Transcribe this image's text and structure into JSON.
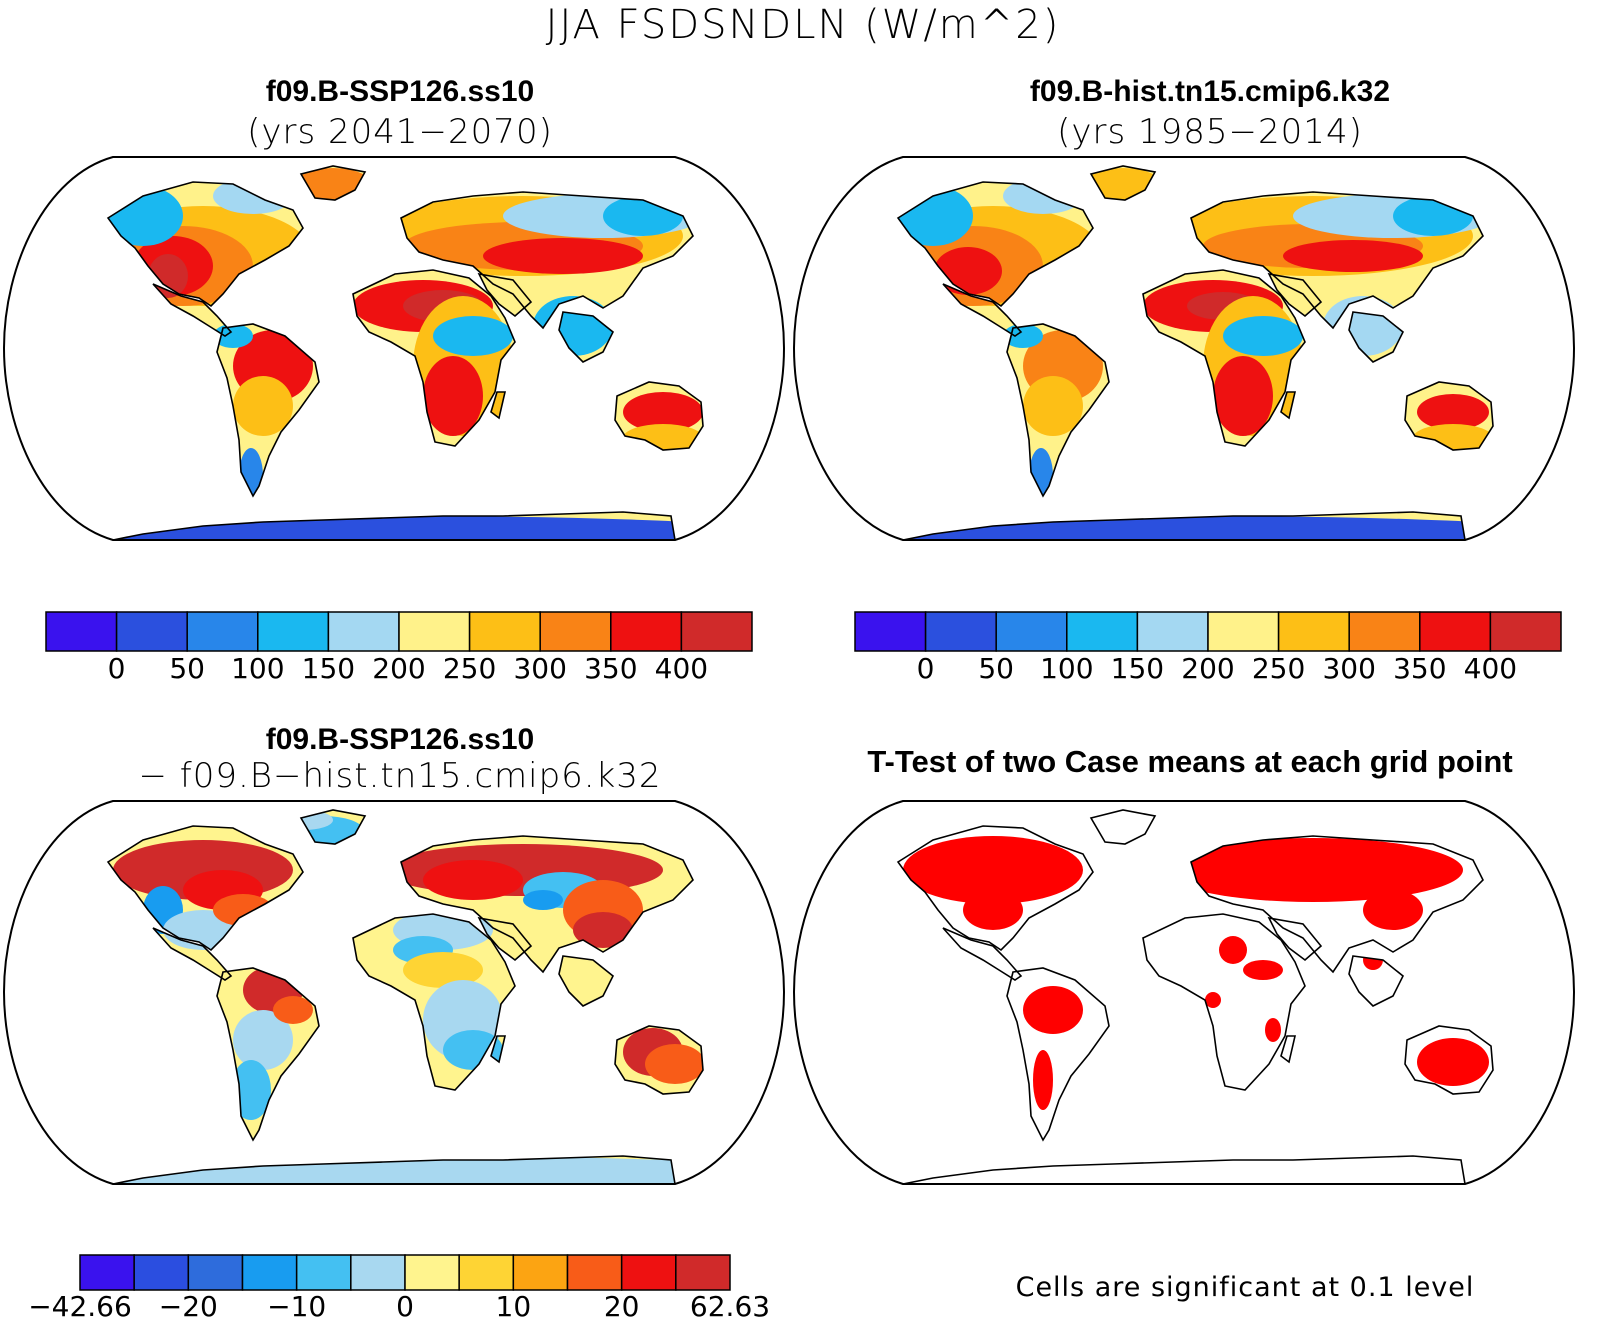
{
  "figure": {
    "title": "JJA FSDSNDLN (W/m^2)"
  },
  "panels": {
    "top_left": {
      "case": "f09.B-SSP126.ss10",
      "years": "(yrs 2041−2070)"
    },
    "top_right": {
      "case": "f09.B-hist.tn15.cmip6.k32",
      "years": "(yrs 1985−2014)"
    },
    "bottom_left": {
      "case": "f09.B-SSP126.ss10",
      "minus_line": "− f09.B−hist.tn15.cmip6.k32"
    },
    "bottom_right": {
      "title": "T-Test of two Case means at each grid point",
      "note": "Cells are significant at 0.1 level",
      "significant_color": "#ff0000"
    }
  },
  "colorbars": {
    "absolute": {
      "colors": [
        "#3a12ee",
        "#2b50de",
        "#2886ea",
        "#1ab8f0",
        "#a4d8f2",
        "#fff28a",
        "#fdbf16",
        "#f98316",
        "#ee1111",
        "#d02a2a"
      ],
      "labels": [
        "0",
        "50",
        "100",
        "150",
        "200",
        "250",
        "300",
        "350",
        "400"
      ]
    },
    "difference": {
      "colors": [
        "#3a12ee",
        "#2b4ee0",
        "#2e6cdc",
        "#189cf0",
        "#44c0f2",
        "#a8d8f0",
        "#fff48e",
        "#fed434",
        "#fca412",
        "#f85c18",
        "#ee1111",
        "#d02a2a"
      ],
      "labels": [
        "−42.66",
        "−20",
        "−10",
        "0",
        "10",
        "20",
        "62.63"
      ],
      "label_positions": [
        0,
        2,
        4,
        6,
        8,
        10,
        12
      ]
    }
  }
}
